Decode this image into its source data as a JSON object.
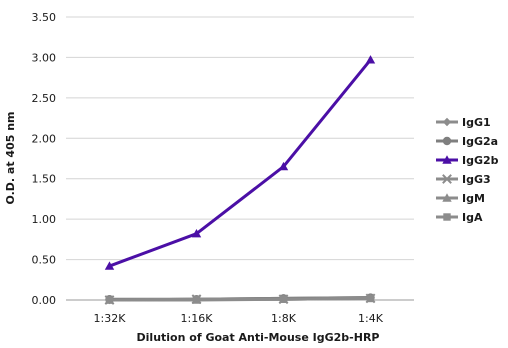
{
  "chart_data": {
    "type": "line",
    "title": "",
    "xlabel": "Dilution of Goat Anti-Mouse IgG2b-HRP",
    "ylabel": "O.D. at 405 nm",
    "categories": [
      "1:32K",
      "1:16K",
      "1:8K",
      "1:4K"
    ],
    "ylim": [
      0,
      3.5
    ],
    "yticks": [
      "0.00",
      "0.50",
      "1.00",
      "1.50",
      "2.00",
      "2.50",
      "3.00",
      "3.50"
    ],
    "grid": true,
    "legend_position": "right",
    "series": [
      {
        "name": "IgG1",
        "values": [
          0.0,
          0.01,
          0.02,
          0.03
        ],
        "color": "#8c8c8c",
        "marker": "diamond"
      },
      {
        "name": "IgG2a",
        "values": [
          0.01,
          0.01,
          0.02,
          0.03
        ],
        "color": "#7f7f7f",
        "marker": "circle"
      },
      {
        "name": "IgG2b",
        "values": [
          0.42,
          0.82,
          1.65,
          2.97
        ],
        "color": "#4b0fa6",
        "marker": "triangle"
      },
      {
        "name": "IgG3",
        "values": [
          0.0,
          0.01,
          0.01,
          0.02
        ],
        "color": "#8c8c8c",
        "marker": "x"
      },
      {
        "name": "IgM",
        "values": [
          0.0,
          0.0,
          0.01,
          0.02
        ],
        "color": "#8c8c8c",
        "marker": "triangle"
      },
      {
        "name": "IgA",
        "values": [
          0.0,
          0.01,
          0.01,
          0.02
        ],
        "color": "#8c8c8c",
        "marker": "square"
      }
    ]
  }
}
